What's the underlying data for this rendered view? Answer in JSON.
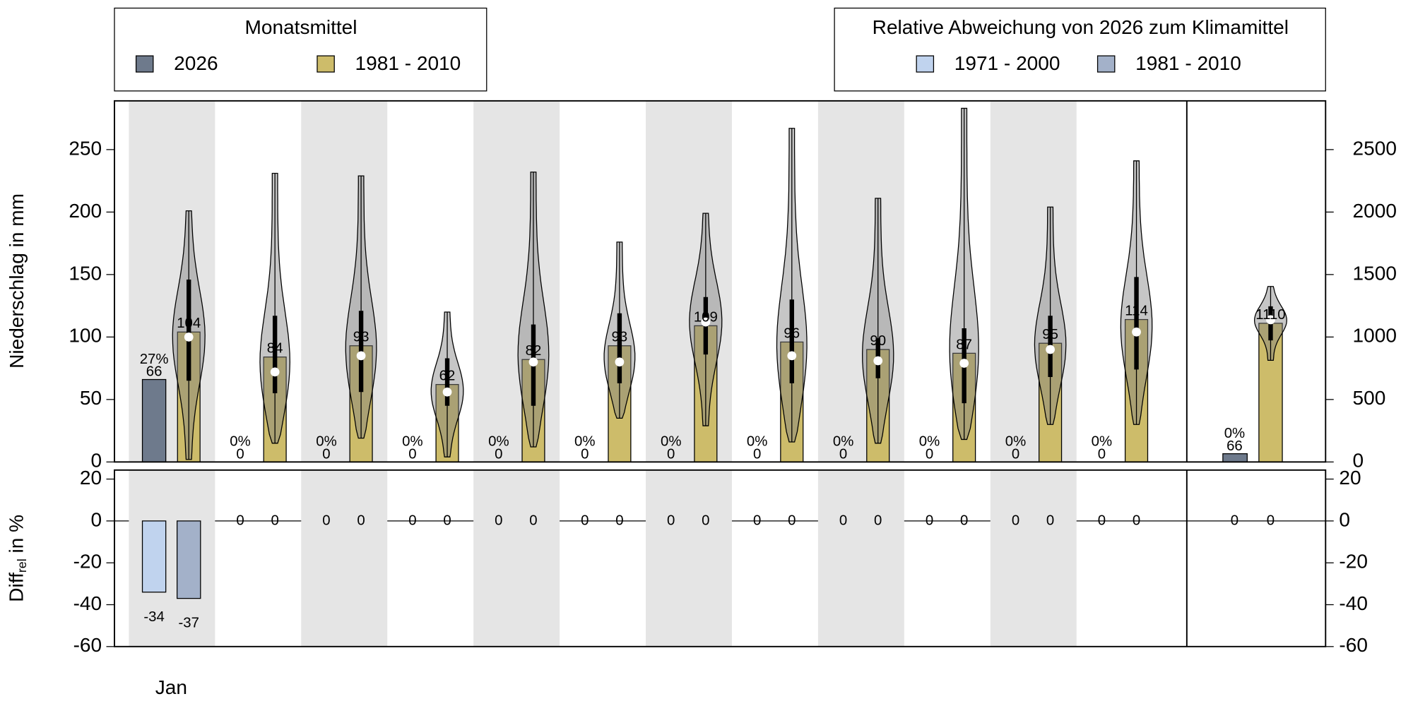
{
  "chart_data": {
    "type": "bar",
    "categories": [
      "Jan",
      null,
      null,
      null,
      null,
      null,
      null,
      null,
      null,
      null,
      null,
      null
    ],
    "series": [
      {
        "name": "2026",
        "color": "#6e7a8c",
        "values": [
          66,
          0,
          0,
          0,
          0,
          0,
          0,
          0,
          0,
          0,
          0,
          0
        ]
      },
      {
        "name": "1981 - 2010",
        "color": "#cdbc6a",
        "values": [
          104,
          84,
          93,
          62,
          82,
          93,
          109,
          96,
          90,
          87,
          95,
          114
        ]
      }
    ],
    "share": {
      "values": [
        27,
        0,
        0,
        0,
        0,
        0,
        0,
        0,
        0,
        0,
        0,
        0
      ],
      "value_labels": [
        "27%",
        "0%",
        "0%",
        "0%",
        "0%",
        "0%",
        "0%",
        "0%",
        "0%",
        "0%",
        "0%",
        "0%"
      ]
    },
    "violins": [
      {
        "min": 2,
        "max": 201,
        "q1": 65,
        "q3": 146,
        "median": 100
      },
      {
        "min": 15,
        "max": 231,
        "q1": 55,
        "q3": 117,
        "median": 72
      },
      {
        "min": 19,
        "max": 229,
        "q1": 56,
        "q3": 121,
        "median": 85
      },
      {
        "min": 4,
        "max": 120,
        "q1": 45,
        "q3": 83,
        "median": 56
      },
      {
        "min": 12,
        "max": 232,
        "q1": 45,
        "q3": 110,
        "median": 80
      },
      {
        "min": 35,
        "max": 176,
        "q1": 63,
        "q3": 119,
        "median": 80
      },
      {
        "min": 29,
        "max": 199,
        "q1": 86,
        "q3": 132,
        "median": 112
      },
      {
        "min": 16,
        "max": 267,
        "q1": 63,
        "q3": 130,
        "median": 85
      },
      {
        "min": 15,
        "max": 211,
        "q1": 67,
        "q3": 99,
        "median": 81
      },
      {
        "min": 18,
        "max": 283,
        "q1": 47,
        "q3": 107,
        "median": 79
      },
      {
        "min": 30,
        "max": 204,
        "q1": 68,
        "q3": 117,
        "median": 90
      },
      {
        "min": 30,
        "max": 241,
        "q1": 74,
        "q3": 148,
        "median": 104
      }
    ],
    "annual": {
      "values": [
        66,
        1110
      ],
      "share": 0,
      "share_label": "0%",
      "violin": {
        "min": 814,
        "max": 1405,
        "q1": 973,
        "q3": 1246,
        "median": 1138
      },
      "diff": [
        0,
        0
      ]
    },
    "ylim": [
      0,
      289
    ],
    "yticks": [
      0,
      50,
      100,
      150,
      200,
      250
    ],
    "y2lim": [
      0,
      2890
    ],
    "y2ticks": [
      0,
      500,
      1000,
      1500,
      2000,
      2500
    ],
    "ylabel": "Niederschlag in mm",
    "legend": {
      "title": "Monatsmittel"
    },
    "diff": {
      "title": "Relative Abweichung von 2026 zum Klimamittel",
      "series": [
        {
          "name": "1971 - 2000",
          "color": "#c0d3ee",
          "values": [
            -34,
            0,
            0,
            0,
            0,
            0,
            0,
            0,
            0,
            0,
            0,
            0
          ]
        },
        {
          "name": "1981 - 2010",
          "color": "#a3b1c9",
          "values": [
            -37,
            0,
            0,
            0,
            0,
            0,
            0,
            0,
            0,
            0,
            0,
            0
          ]
        }
      ],
      "ylim": [
        -60,
        24.3
      ],
      "yticks": [
        -60,
        -40,
        -20,
        0,
        20
      ],
      "ylabel": {
        "text": "Diff",
        "subscript": "rel",
        "suffix": " in %"
      }
    }
  }
}
